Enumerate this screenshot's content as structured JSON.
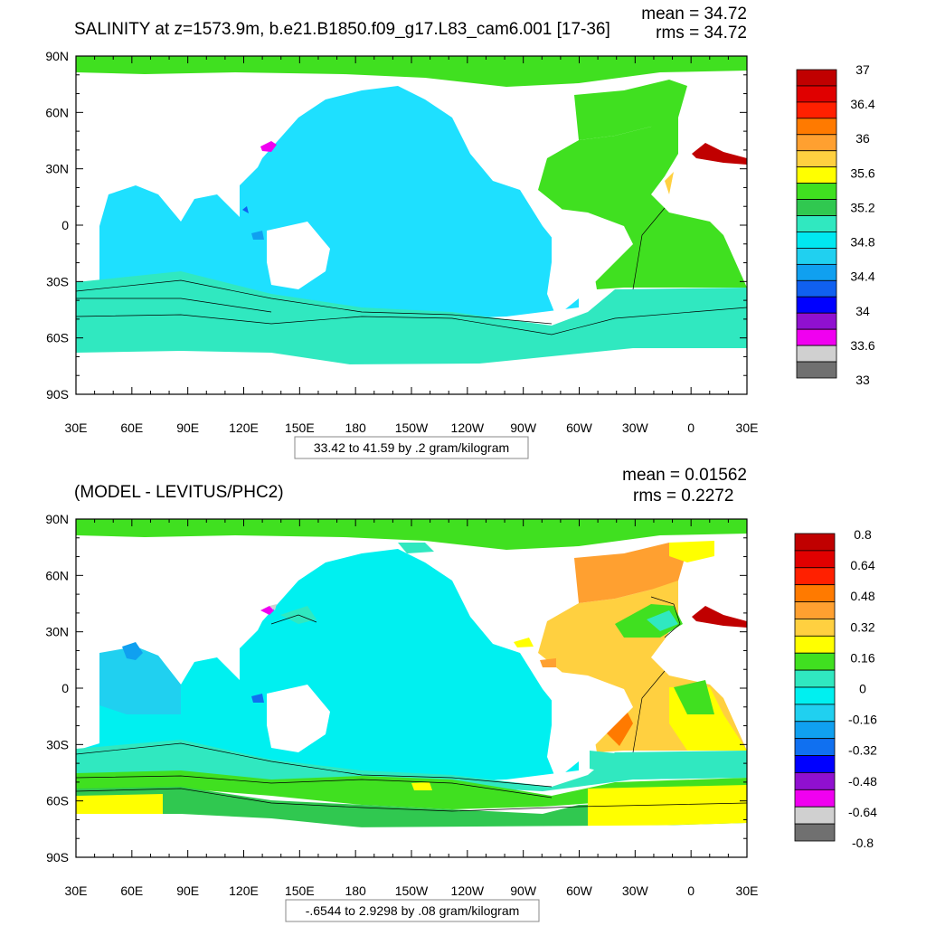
{
  "panels": [
    {
      "title": "SALINITY at z=1573.9m, b.e21.B1850.f09_g17.L83_cam6.001 [17-36]",
      "mean_text": "mean = 34.72",
      "rms_text": "rms = 34.72",
      "info_text": "33.42 to 41.59 by .2 gram/kilogram",
      "colorbar_labels": [
        "37",
        "36.4",
        "36",
        "35.6",
        "35.2",
        "34.8",
        "34.4",
        "34",
        "33.6",
        "33"
      ],
      "colorbar_colors": [
        "#c00000",
        "#e00000",
        "#ff2000",
        "#ff7a00",
        "#ffa030",
        "#ffd040",
        "#ffff00",
        "#40e020",
        "#30c850",
        "#30e8c0",
        "#00e8f0",
        "#20d0f0",
        "#10a0f0",
        "#1060f0",
        "#0000ff",
        "#9010d0",
        "#f000f0",
        "#d0d0d0",
        "#707070"
      ]
    },
    {
      "title": "(MODEL - LEVITUS/PHC2)",
      "mean_text": "mean = 0.01562",
      "rms_text": "rms = 0.2272",
      "info_text": "-.6544 to 2.9298 by .08 gram/kilogram",
      "colorbar_labels": [
        "0.8",
        "0.64",
        "0.48",
        "0.32",
        "0.16",
        "0",
        "-0.16",
        "-0.32",
        "-0.48",
        "-0.64",
        "-0.8"
      ],
      "colorbar_colors": [
        "#c00000",
        "#e00000",
        "#ff2000",
        "#ff7a00",
        "#ffa030",
        "#ffd040",
        "#ffff00",
        "#40e020",
        "#30e8c0",
        "#00f0f0",
        "#20d0f0",
        "#10a0f0",
        "#1070f0",
        "#0000ff",
        "#9010d0",
        "#f000f0",
        "#d0d0d0",
        "#707070"
      ]
    }
  ],
  "axes": {
    "lat_labels": [
      "90N",
      "60N",
      "30N",
      "0",
      "30S",
      "60S",
      "90S"
    ],
    "lon_labels": [
      "30E",
      "60E",
      "90E",
      "120E",
      "150E",
      "180",
      "150W",
      "120W",
      "90W",
      "60W",
      "30W",
      "0",
      "30E"
    ]
  },
  "colors": {
    "ocean_main_top": "#1ee0ff",
    "southern_band": "#30e8c0",
    "atlantic_top": "#40e020",
    "arctic": "#40e020",
    "diff_pacific": "#00f0f0",
    "diff_atlantic": "#ffd040",
    "diff_south": "#ffff00",
    "diff_band": "#40e020"
  }
}
